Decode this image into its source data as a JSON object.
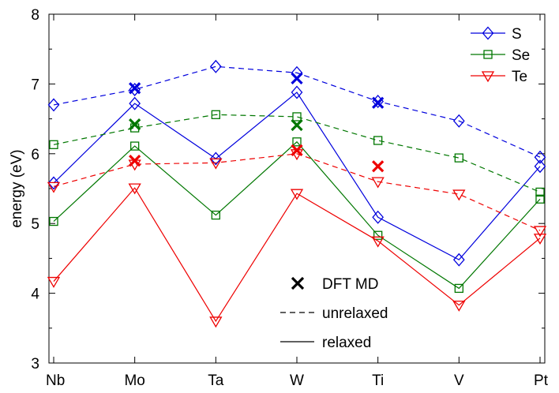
{
  "chart_data": {
    "type": "line",
    "ylabel": "energy (eV)",
    "xlabel": "",
    "categories": [
      "Nb",
      "Mo",
      "Ta",
      "W",
      "Ti",
      "V",
      "Pt"
    ],
    "ylim": [
      3,
      8
    ],
    "yticks": [
      3,
      4,
      5,
      6,
      7,
      8
    ],
    "grid": false,
    "series": [
      {
        "name": "S",
        "color": "#0000dd",
        "marker": "diamond",
        "relaxed": [
          5.58,
          6.72,
          5.93,
          6.88,
          5.09,
          4.48,
          5.82
        ],
        "unrelaxed": [
          6.7,
          6.92,
          7.25,
          7.16,
          6.75,
          6.47,
          5.95
        ],
        "dft_md": [
          null,
          6.94,
          null,
          7.08,
          6.73,
          null,
          null
        ]
      },
      {
        "name": "Se",
        "color": "#007700",
        "marker": "square",
        "relaxed": [
          5.03,
          6.11,
          5.12,
          6.17,
          4.83,
          4.07,
          5.35
        ],
        "unrelaxed": [
          6.13,
          6.37,
          6.56,
          6.53,
          6.19,
          5.94,
          5.45
        ],
        "dft_md": [
          null,
          6.42,
          null,
          6.41,
          null,
          null,
          null
        ]
      },
      {
        "name": "Te",
        "color": "#ee0000",
        "marker": "triangle-down",
        "relaxed": [
          4.17,
          5.51,
          3.6,
          5.43,
          4.75,
          3.83,
          4.79
        ],
        "unrelaxed": [
          5.53,
          5.85,
          5.87,
          6.0,
          5.6,
          5.42,
          4.9
        ],
        "dft_md": [
          null,
          5.9,
          null,
          6.05,
          5.82,
          null,
          null
        ]
      }
    ],
    "legend": {
      "series_position": "top-right",
      "style_entries": [
        "DFT MD",
        "unrelaxed",
        "relaxed"
      ]
    }
  }
}
